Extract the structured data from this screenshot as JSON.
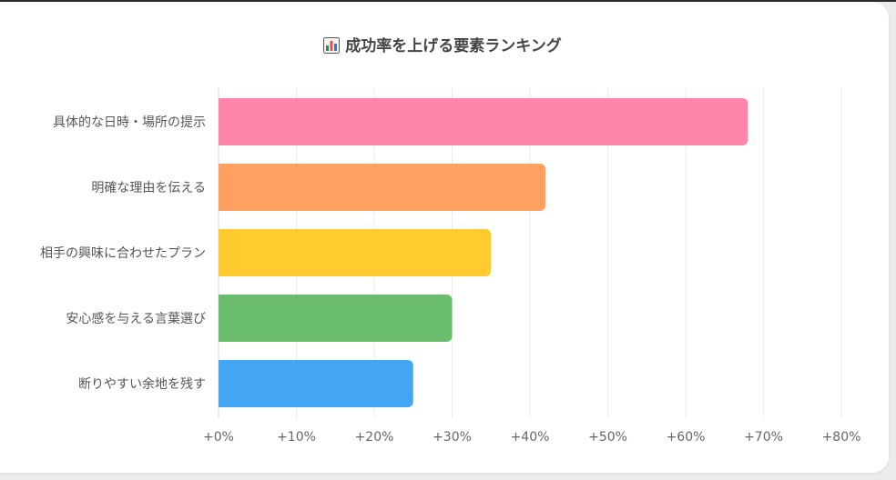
{
  "chart_data": {
    "type": "bar",
    "orientation": "horizontal",
    "title": "成功率を上げる要素ランキング",
    "title_icon": "bar-chart-icon",
    "categories": [
      "具体的な日時・場所の提示",
      "明確な理由を伝える",
      "相手の興味に合わせたプラン",
      "安心感を与える言葉選び",
      "断りやすい余地を残す"
    ],
    "values": [
      68,
      42,
      35,
      30,
      25
    ],
    "colors": [
      "#ff85ab",
      "#ffa060",
      "#ffcb2e",
      "#6bbd6e",
      "#44a6f2"
    ],
    "xlim": [
      0,
      80
    ],
    "xticks": [
      0,
      10,
      20,
      30,
      40,
      50,
      60,
      70,
      80
    ],
    "xtick_labels": [
      "+0%",
      "+10%",
      "+20%",
      "+30%",
      "+40%",
      "+50%",
      "+60%",
      "+70%",
      "+80%"
    ],
    "grid": true,
    "legend": "none"
  }
}
